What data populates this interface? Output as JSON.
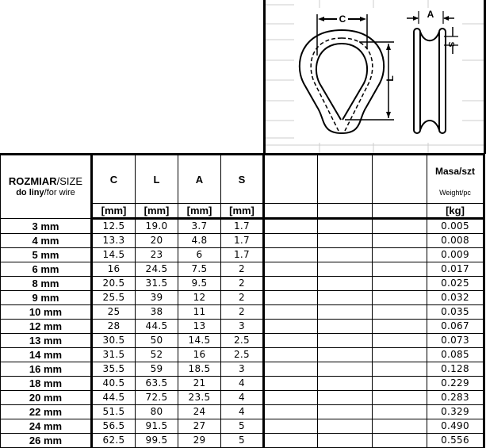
{
  "header": {
    "size_label_bold": "ROZMIAR",
    "size_label_rest": "/SIZE",
    "wire_label_bold": "do liny",
    "wire_label_rest": "/for wire",
    "columns": [
      "C",
      "L",
      "A",
      "S"
    ],
    "unit_mm": "[mm]",
    "mass_label": "Masa/szt",
    "weight_label": "Weight/pc",
    "unit_kg": "[kg]"
  },
  "drawing": {
    "labels": [
      "C",
      "L",
      "A",
      "S"
    ]
  },
  "rows": [
    {
      "size": "3 mm",
      "C": "12.5",
      "L": "19.0",
      "A": "3.7",
      "S": "1.7",
      "kg": "0.005"
    },
    {
      "size": "4 mm",
      "C": "13.3",
      "L": "20",
      "A": "4.8",
      "S": "1.7",
      "kg": "0.008"
    },
    {
      "size": "5 mm",
      "C": "14.5",
      "L": "23",
      "A": "6",
      "S": "1.7",
      "kg": "0.009"
    },
    {
      "size": "6 mm",
      "C": "16",
      "L": "24.5",
      "A": "7.5",
      "S": "2",
      "kg": "0.017"
    },
    {
      "size": "8 mm",
      "C": "20.5",
      "L": "31.5",
      "A": "9.5",
      "S": "2",
      "kg": "0.025"
    },
    {
      "size": "9 mm",
      "C": "25.5",
      "L": "39",
      "A": "12",
      "S": "2",
      "kg": "0.032"
    },
    {
      "size": "10 mm",
      "C": "25",
      "L": "38",
      "A": "11",
      "S": "2",
      "kg": "0.035"
    },
    {
      "size": "12 mm",
      "C": "28",
      "L": "44.5",
      "A": "13",
      "S": "3",
      "kg": "0.067"
    },
    {
      "size": "13 mm",
      "C": "30.5",
      "L": "50",
      "A": "14.5",
      "S": "2.5",
      "kg": "0.073"
    },
    {
      "size": "14 mm",
      "C": "31.5",
      "L": "52",
      "A": "16",
      "S": "2.5",
      "kg": "0.085"
    },
    {
      "size": "16 mm",
      "C": "35.5",
      "L": "59",
      "A": "18.5",
      "S": "3",
      "kg": "0.128"
    },
    {
      "size": "18 mm",
      "C": "40.5",
      "L": "63.5",
      "A": "21",
      "S": "4",
      "kg": "0.229"
    },
    {
      "size": "20 mm",
      "C": "44.5",
      "L": "72.5",
      "A": "23.5",
      "S": "4",
      "kg": "0.283"
    },
    {
      "size": "22 mm",
      "C": "51.5",
      "L": "80",
      "A": "24",
      "S": "4",
      "kg": "0.329"
    },
    {
      "size": "24 mm",
      "C": "56.5",
      "L": "91.5",
      "A": "27",
      "S": "5",
      "kg": "0.490"
    },
    {
      "size": "26 mm",
      "C": "62.5",
      "L": "99.5",
      "A": "29",
      "S": "5",
      "kg": "0.556"
    }
  ]
}
